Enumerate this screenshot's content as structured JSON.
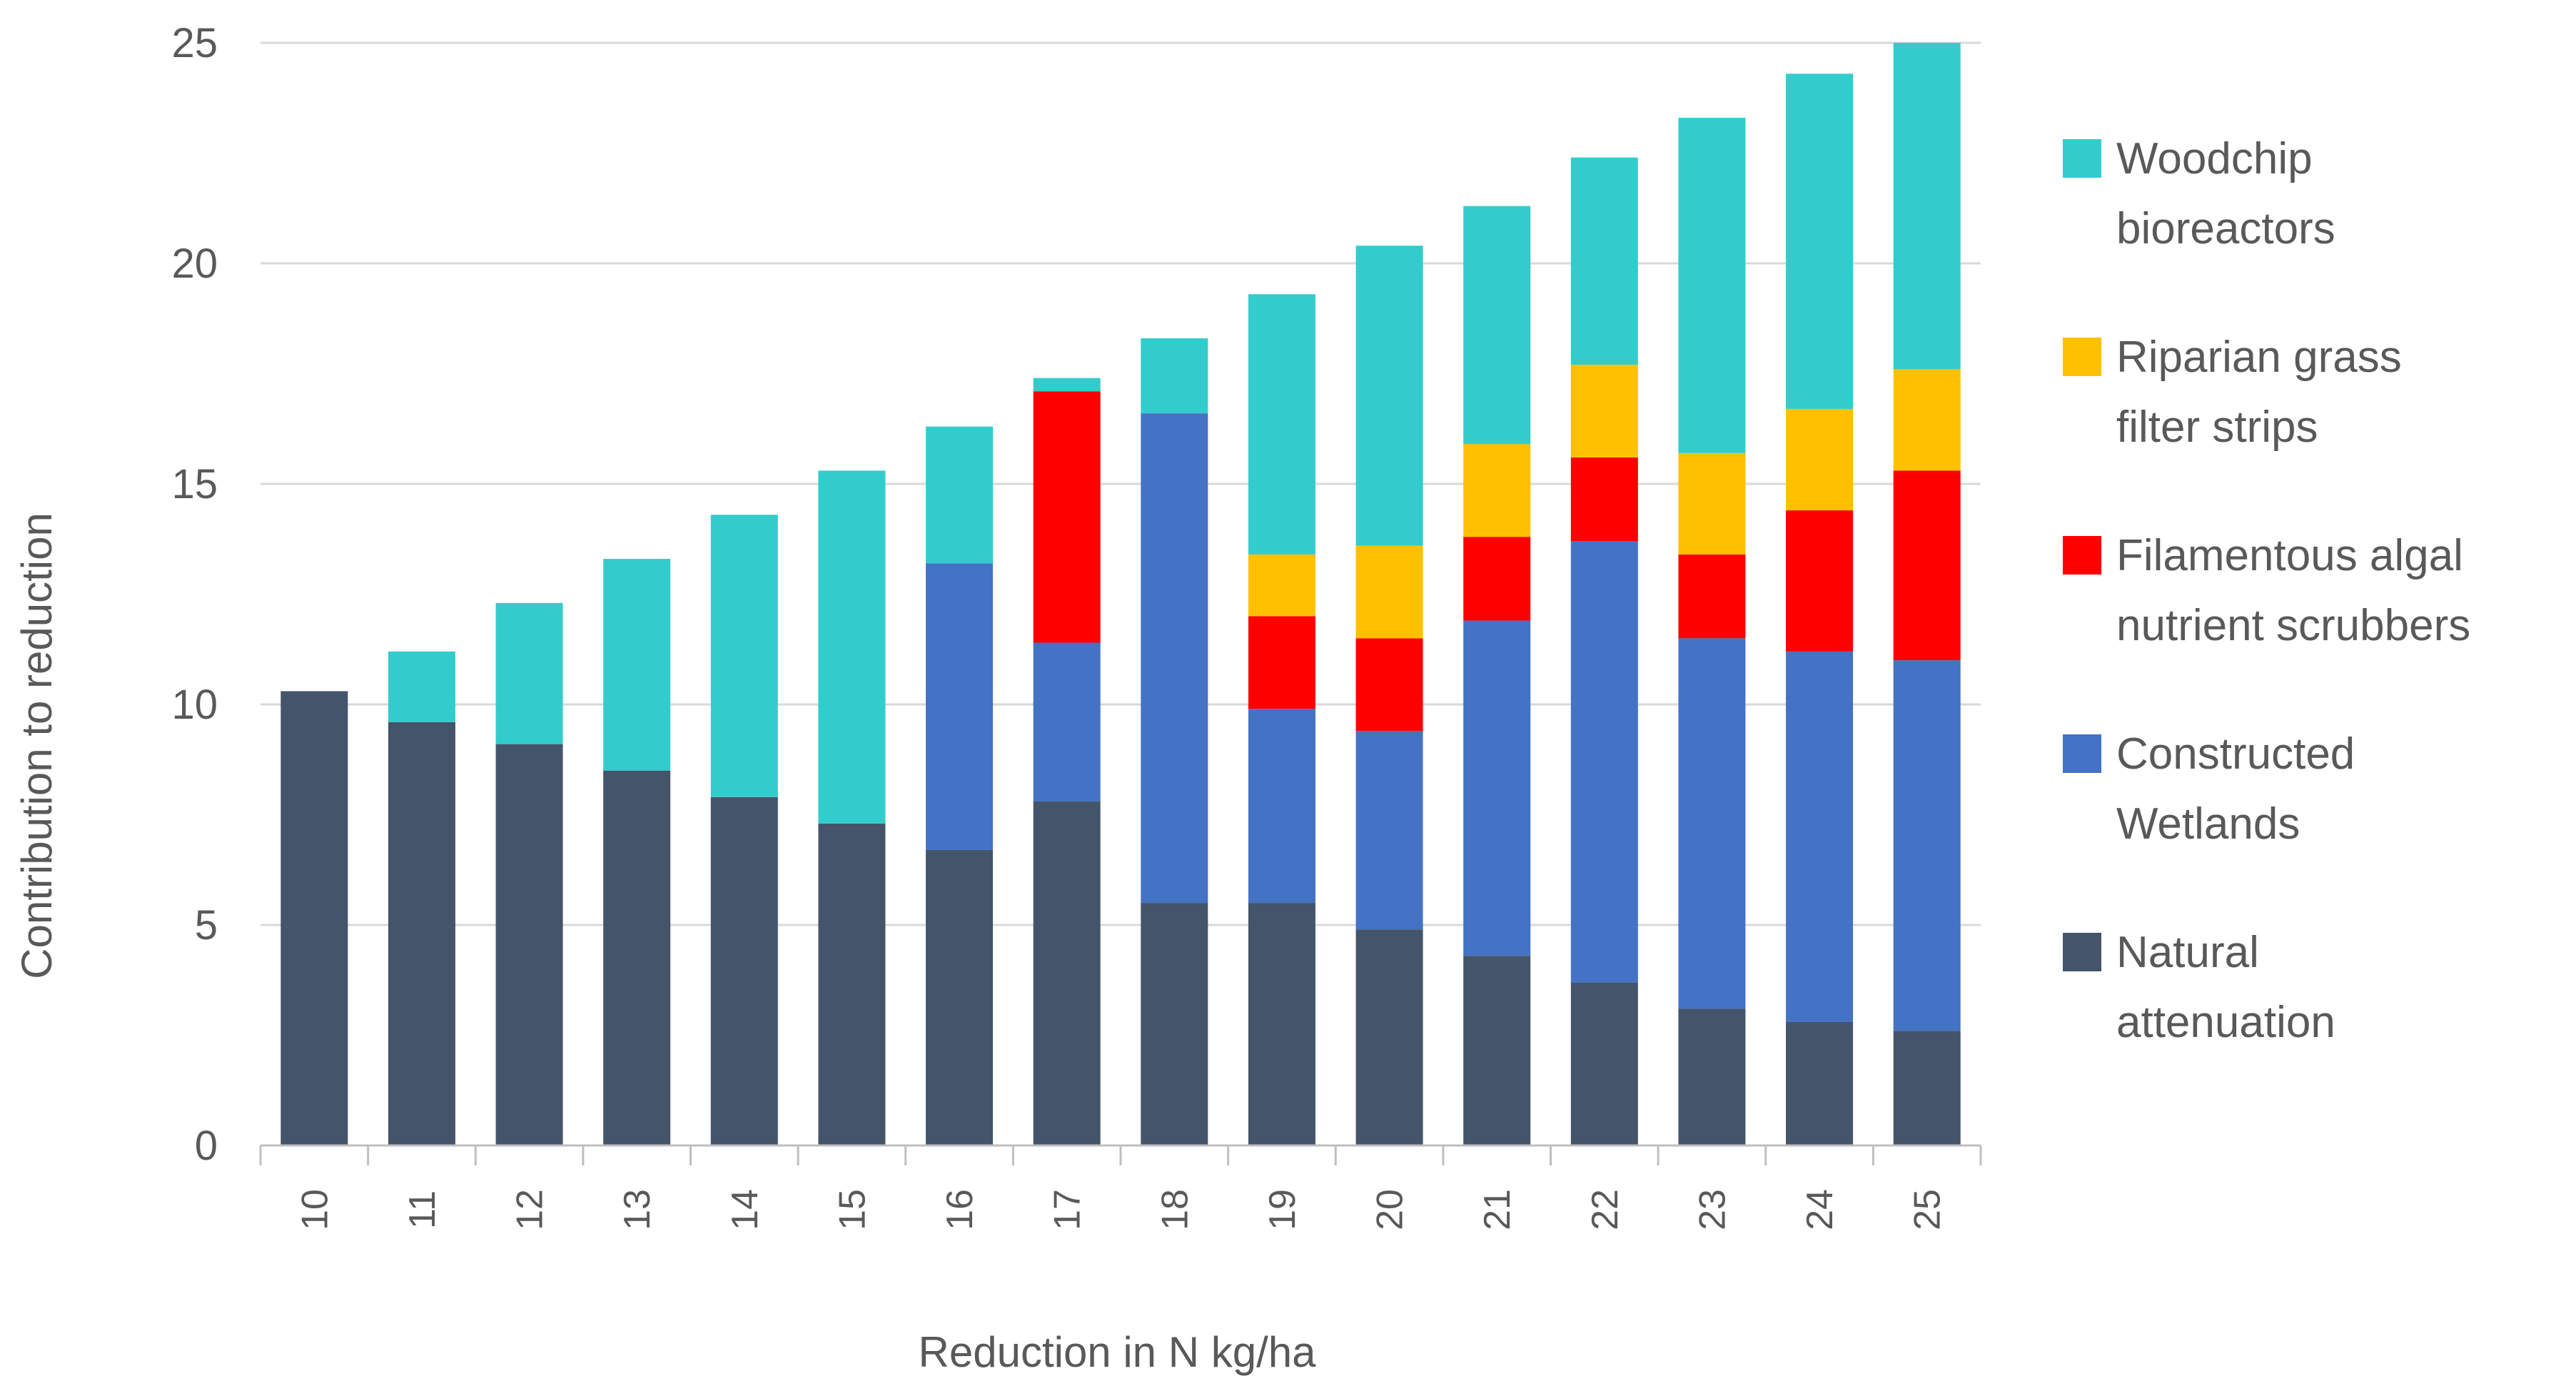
{
  "chart_data": {
    "type": "bar",
    "stacked": true,
    "title": "",
    "xlabel": "Reduction in N kg/ha",
    "ylabel": "Contribution to reduction",
    "ylim": [
      0,
      25
    ],
    "yticks": [
      "0",
      "5",
      "10",
      "15",
      "20",
      "25"
    ],
    "categories": [
      "10",
      "11",
      "12",
      "13",
      "14",
      "15",
      "16",
      "17",
      "18",
      "19",
      "20",
      "21",
      "22",
      "23",
      "24",
      "25"
    ],
    "series": [
      {
        "name": "Natural attenuation",
        "color": "#44546a",
        "values": [
          10.3,
          9.6,
          9.1,
          8.5,
          7.9,
          7.3,
          6.7,
          7.8,
          5.5,
          5.5,
          4.9,
          4.3,
          3.7,
          3.1,
          2.8,
          2.6
        ]
      },
      {
        "name": "Constructed Wetlands",
        "color": "#4472c4",
        "values": [
          0,
          0,
          0,
          0,
          0,
          0,
          6.5,
          3.6,
          11.1,
          4.4,
          4.5,
          7.6,
          10.0,
          8.4,
          8.4,
          8.4
        ]
      },
      {
        "name": "Filamentous algal nutrient scrubbers",
        "color": "#ff0000",
        "values": [
          0,
          0,
          0,
          0,
          0,
          0,
          0,
          5.7,
          0,
          2.1,
          2.1,
          1.9,
          1.9,
          1.9,
          3.2,
          4.3
        ]
      },
      {
        "name": "Riparian grass filter strips",
        "color": "#ffc000",
        "values": [
          0,
          0,
          0,
          0,
          0,
          0,
          0,
          0,
          0,
          1.4,
          2.1,
          2.1,
          2.1,
          2.3,
          2.3,
          2.3
        ]
      },
      {
        "name": "Woodchip bioreactors",
        "color": "#33cccc",
        "values": [
          0,
          1.6,
          3.2,
          4.8,
          6.4,
          8.0,
          3.1,
          0.3,
          1.7,
          5.9,
          6.8,
          5.4,
          4.7,
          7.6,
          7.6,
          7.4
        ]
      }
    ],
    "legend": {
      "position": "right",
      "entries": [
        {
          "series": "Woodchip bioreactors",
          "lines": [
            "Woodchip",
            "bioreactors"
          ],
          "color": "#33cccc"
        },
        {
          "series": "Riparian grass filter strips",
          "lines": [
            "Riparian grass",
            "filter strips"
          ],
          "color": "#ffc000"
        },
        {
          "series": "Filamentous algal nutrient scrubbers",
          "lines": [
            "Filamentous algal",
            "nutrient scrubbers"
          ],
          "color": "#ff0000"
        },
        {
          "series": "Constructed Wetlands",
          "lines": [
            "Constructed",
            "Wetlands"
          ],
          "color": "#4472c4"
        },
        {
          "series": "Natural attenuation",
          "lines": [
            "Natural",
            "attenuation"
          ],
          "color": "#44546a"
        }
      ]
    },
    "grid": true
  }
}
